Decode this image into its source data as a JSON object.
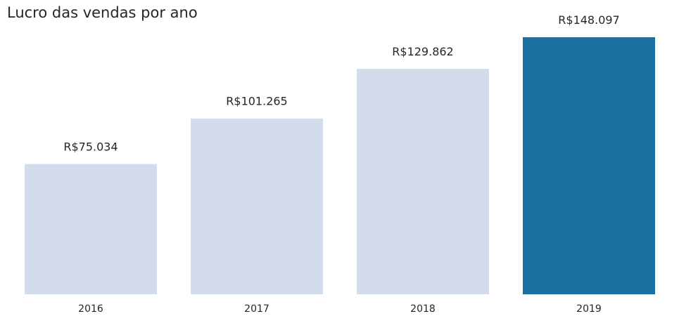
{
  "chart_data": {
    "type": "bar",
    "title": "Lucro das vendas por ano",
    "xlabel": "",
    "ylabel": "",
    "categories": [
      "2016",
      "2017",
      "2018",
      "2019"
    ],
    "values": [
      75034,
      101265,
      129862,
      148097
    ],
    "value_labels": [
      "R$75.034",
      "R$101.265",
      "R$129.862",
      "R$148.097"
    ],
    "ylim": [
      0,
      148097
    ],
    "grid": false,
    "legend": "none",
    "colors": {
      "default": "#d3dcec",
      "highlight": "#1a71a0"
    },
    "highlight_category": "2019"
  }
}
